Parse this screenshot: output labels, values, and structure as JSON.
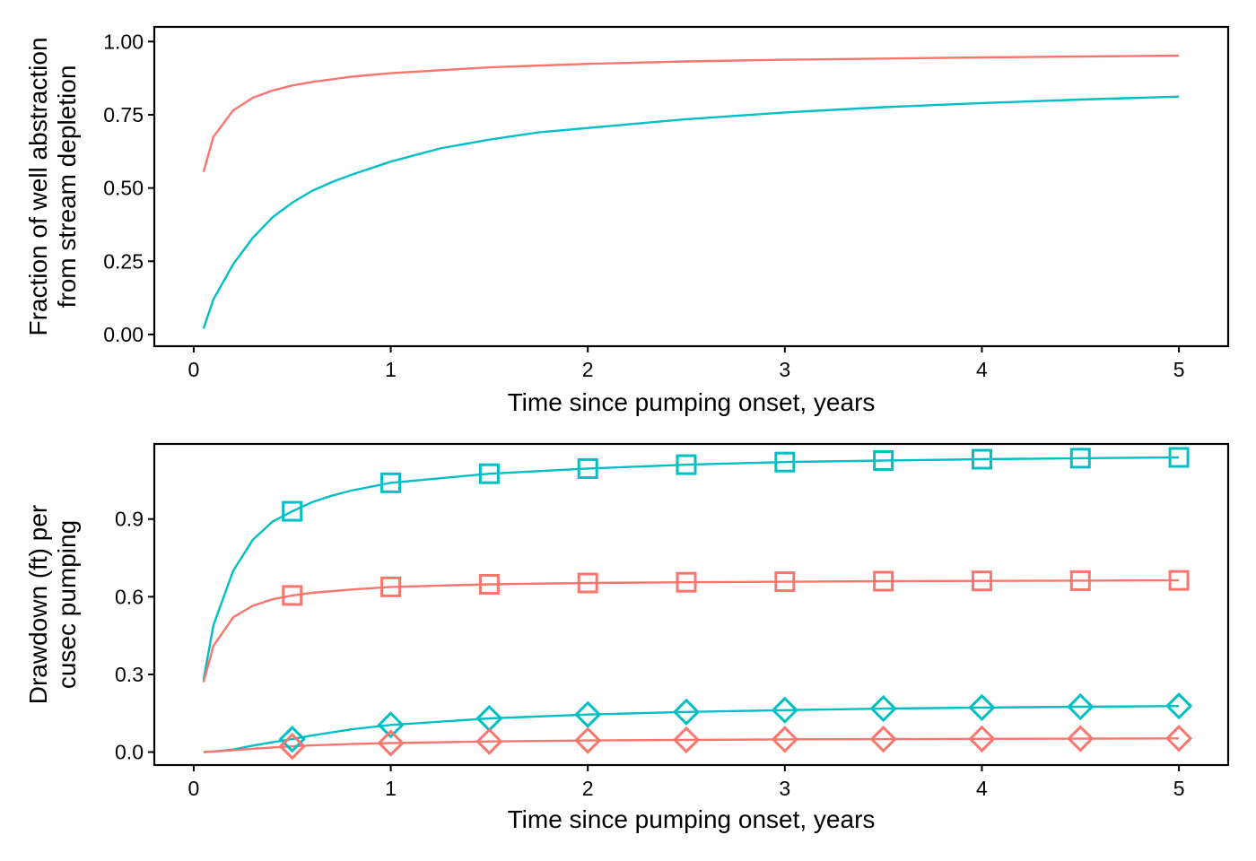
{
  "chart_data": [
    {
      "type": "line",
      "xlabel": "Time since pumping onset, years",
      "ylabel": [
        "Fraction of well abstraction",
        "from stream depletion"
      ],
      "xlim": [
        -0.2,
        5.25
      ],
      "ylim": [
        -0.04,
        1.05
      ],
      "xticks": [
        0,
        1,
        2,
        3,
        4,
        5
      ],
      "xtick_labels": [
        "0",
        "1",
        "2",
        "3",
        "4",
        "5"
      ],
      "yticks": [
        0,
        0.25,
        0.5,
        0.75,
        1
      ],
      "ytick_labels": [
        "0.00",
        "0.25",
        "0.50",
        "0.75",
        "1.00"
      ],
      "grid": false,
      "legend": "none",
      "series": [
        {
          "color": "#F8766D",
          "x": [
            0.05,
            0.1,
            0.2,
            0.3,
            0.4,
            0.5,
            0.6,
            0.8,
            1,
            1.5,
            2,
            2.5,
            3,
            3.5,
            4,
            4.5,
            5
          ],
          "y": [
            0.555,
            0.675,
            0.765,
            0.808,
            0.833,
            0.85,
            0.862,
            0.88,
            0.892,
            0.912,
            0.924,
            0.932,
            0.938,
            0.942,
            0.946,
            0.949,
            0.952
          ]
        },
        {
          "color": "#00BFC4",
          "x": [
            0.05,
            0.1,
            0.2,
            0.3,
            0.4,
            0.5,
            0.6,
            0.7,
            0.8,
            1,
            1.25,
            1.5,
            1.75,
            2,
            2.5,
            3,
            3.5,
            4,
            4.5,
            5
          ],
          "y": [
            0.02,
            0.12,
            0.24,
            0.33,
            0.4,
            0.45,
            0.49,
            0.52,
            0.545,
            0.59,
            0.635,
            0.665,
            0.69,
            0.705,
            0.735,
            0.758,
            0.776,
            0.79,
            0.802,
            0.812
          ]
        }
      ]
    },
    {
      "type": "line",
      "xlabel": "Time since pumping onset, years",
      "ylabel": [
        "Drawdown (ft) per",
        "cusec pumping"
      ],
      "xlim": [
        -0.2,
        5.25
      ],
      "ylim": [
        -0.05,
        1.19
      ],
      "xticks": [
        0,
        1,
        2,
        3,
        4,
        5
      ],
      "xtick_labels": [
        "0",
        "1",
        "2",
        "3",
        "4",
        "5"
      ],
      "yticks": [
        0,
        0.3,
        0.6,
        0.9
      ],
      "ytick_labels": [
        "0.0",
        "0.3",
        "0.6",
        "0.9"
      ],
      "grid": false,
      "legend": "none",
      "series": [
        {
          "color": "#00BFC4",
          "marker": "square",
          "x": [
            0.05,
            0.1,
            0.2,
            0.3,
            0.4,
            0.5,
            0.6,
            0.7,
            0.8,
            1,
            1.5,
            2,
            2.5,
            3,
            3.5,
            4,
            4.5,
            5
          ],
          "y": [
            0.28,
            0.49,
            0.7,
            0.82,
            0.89,
            0.93,
            0.965,
            0.99,
            1.01,
            1.04,
            1.075,
            1.095,
            1.11,
            1.12,
            1.126,
            1.131,
            1.135,
            1.138
          ],
          "marker_x": [
            0.5,
            1,
            1.5,
            2,
            2.5,
            3,
            3.5,
            4,
            4.5,
            5
          ],
          "marker_y": [
            0.93,
            1.04,
            1.075,
            1.095,
            1.11,
            1.12,
            1.126,
            1.131,
            1.135,
            1.138
          ]
        },
        {
          "color": "#F8766D",
          "marker": "square",
          "x": [
            0.05,
            0.1,
            0.2,
            0.3,
            0.4,
            0.5,
            0.6,
            0.8,
            1,
            1.5,
            2,
            2.5,
            3,
            3.5,
            4,
            4.5,
            5
          ],
          "y": [
            0.27,
            0.41,
            0.52,
            0.565,
            0.59,
            0.605,
            0.615,
            0.628,
            0.638,
            0.648,
            0.653,
            0.656,
            0.658,
            0.66,
            0.661,
            0.662,
            0.663
          ],
          "marker_x": [
            0.5,
            1,
            1.5,
            2,
            2.5,
            3,
            3.5,
            4,
            4.5,
            5
          ],
          "marker_y": [
            0.605,
            0.638,
            0.648,
            0.653,
            0.656,
            0.658,
            0.66,
            0.661,
            0.662,
            0.663
          ]
        },
        {
          "color": "#00BFC4",
          "marker": "diamond",
          "x": [
            0.05,
            0.1,
            0.2,
            0.3,
            0.4,
            0.5,
            0.6,
            0.8,
            1,
            1.5,
            2,
            2.5,
            3,
            3.5,
            4,
            4.5,
            5
          ],
          "y": [
            0.0,
            0.002,
            0.01,
            0.025,
            0.038,
            0.05,
            0.064,
            0.088,
            0.105,
            0.13,
            0.145,
            0.155,
            0.162,
            0.168,
            0.172,
            0.175,
            0.178
          ],
          "marker_x": [
            0.5,
            1,
            1.5,
            2,
            2.5,
            3,
            3.5,
            4,
            4.5,
            5
          ],
          "marker_y": [
            0.05,
            0.105,
            0.13,
            0.145,
            0.155,
            0.162,
            0.168,
            0.172,
            0.175,
            0.178
          ]
        },
        {
          "color": "#F8766D",
          "marker": "diamond",
          "x": [
            0.05,
            0.1,
            0.2,
            0.3,
            0.4,
            0.5,
            0.6,
            0.8,
            1,
            1.5,
            2,
            2.5,
            3,
            3.5,
            4,
            4.5,
            5
          ],
          "y": [
            0.0,
            0.002,
            0.007,
            0.013,
            0.018,
            0.022,
            0.026,
            0.031,
            0.035,
            0.041,
            0.045,
            0.047,
            0.049,
            0.05,
            0.051,
            0.052,
            0.053
          ],
          "marker_x": [
            0.5,
            1,
            1.5,
            2,
            2.5,
            3,
            3.5,
            4,
            4.5,
            5
          ],
          "marker_y": [
            0.022,
            0.035,
            0.041,
            0.045,
            0.047,
            0.049,
            0.05,
            0.051,
            0.052,
            0.053
          ]
        }
      ]
    }
  ]
}
